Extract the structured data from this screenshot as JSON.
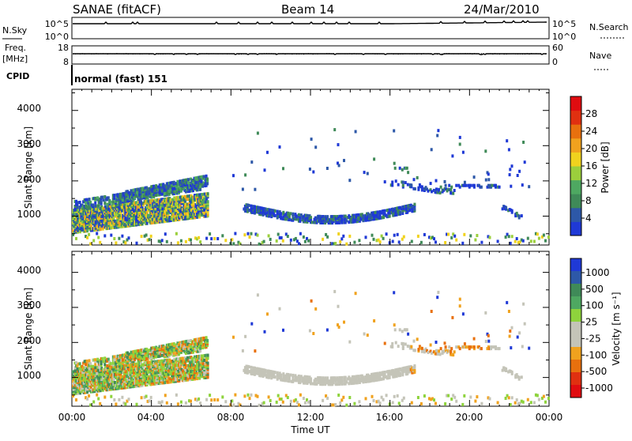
{
  "header": {
    "title": "SANAE (fitACF)",
    "beam": "Beam 14",
    "date": "24/Mar/2010"
  },
  "strip_nsky": {
    "left_label": "N.Sky",
    "right_label": "N.Search",
    "ticks_left": [
      "10^5",
      "10^0"
    ],
    "ticks_right": [
      "10^5",
      "10^0"
    ]
  },
  "strip_freq": {
    "left_label_1": "Freq.",
    "left_label_2": "[MHz]",
    "right_label": "Nave",
    "ticks_left": [
      "18",
      "8"
    ],
    "ticks_right": [
      "60",
      "0"
    ]
  },
  "cpid": {
    "label": "CPID",
    "text": "normal (fast) 151"
  },
  "colors": {
    "power_scale": [
      "#1f39d6",
      "#2d58a8",
      "#3f8a58",
      "#4ea861",
      "#9bcf3c",
      "#f0d21e",
      "#f0a21e",
      "#e8700e",
      "#e03010",
      "#e00c10"
    ],
    "velocity_scale": [
      "#1f39d6",
      "#2d58a8",
      "#3f8a58",
      "#4ea861",
      "#8ed33c",
      "#c4c4b8",
      "#c4c4b8",
      "#f0a21e",
      "#e8700e",
      "#e03010",
      "#e00c10"
    ],
    "echo_gray": "#c4c4b8"
  },
  "chart_data": [
    {
      "type": "heatmap",
      "panel": "power",
      "ylabel": "Slant Range [km]",
      "ylim": [
        180,
        4600
      ],
      "yticks": [
        "4000",
        "3000",
        "2000",
        "1000"
      ],
      "xlim_hours": [
        0,
        24
      ],
      "colorbar_label": "Power [dB]",
      "colorbar_ticks": [
        "28",
        "24",
        "20",
        "16",
        "12",
        "8",
        "4"
      ],
      "colorbar_range": [
        0,
        32
      ]
    },
    {
      "type": "heatmap",
      "panel": "velocity",
      "ylabel": "Slant Range [km]",
      "ylim": [
        180,
        4600
      ],
      "yticks": [
        "4000",
        "3000",
        "2000",
        "1000"
      ],
      "xlim_hours": [
        0,
        24
      ],
      "xlabel": "Time UT",
      "xticks": [
        "00:00",
        "04:00",
        "08:00",
        "12:00",
        "16:00",
        "20:00",
        "00:00"
      ],
      "colorbar_label": "Velocity [m s⁻¹]",
      "colorbar_ticks": [
        "1000",
        "500",
        "100",
        "25",
        "-25",
        "-100",
        "-500",
        "-1000"
      ]
    }
  ]
}
